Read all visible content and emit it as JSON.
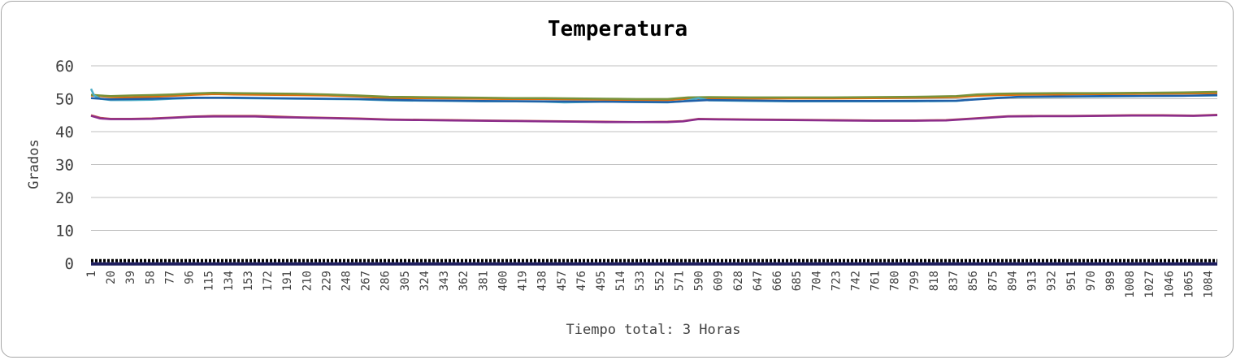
{
  "chart_data": {
    "type": "line",
    "title": "Temperatura",
    "xlabel": "Tiempo total: 3 Horas",
    "ylabel": "Grados",
    "ylim": [
      0,
      60
    ],
    "yticks": [
      0,
      10,
      20,
      30,
      40,
      50,
      60
    ],
    "xlim": [
      1,
      1093
    ],
    "xticks": [
      1,
      20,
      39,
      58,
      77,
      96,
      115,
      134,
      153,
      172,
      191,
      210,
      229,
      248,
      267,
      286,
      305,
      324,
      343,
      362,
      381,
      400,
      419,
      438,
      457,
      476,
      495,
      514,
      533,
      552,
      571,
      590,
      609,
      628,
      647,
      666,
      685,
      704,
      723,
      742,
      761,
      780,
      799,
      818,
      837,
      856,
      875,
      894,
      913,
      932,
      951,
      970,
      989,
      1008,
      1027,
      1046,
      1065,
      1084
    ],
    "grid": true,
    "legend": "none",
    "series": [
      {
        "color": "#e36c0a",
        "x": [
          1,
          10,
          20,
          40,
          60,
          80,
          100,
          120,
          140,
          170,
          200,
          230,
          260,
          290,
          320,
          350,
          380,
          410,
          440,
          470,
          500,
          530,
          560,
          580,
          600,
          640,
          680,
          720,
          760,
          800,
          840,
          860,
          880,
          900,
          940,
          980,
          1020,
          1060,
          1093
        ],
        "y": [
          51,
          50.8,
          50.5,
          50.4,
          50.6,
          50.9,
          51.2,
          51.4,
          51.3,
          51.2,
          51.1,
          51.0,
          50.7,
          50.2,
          50.2,
          50.1,
          50.0,
          49.9,
          49.9,
          49.8,
          49.7,
          49.6,
          49.6,
          50.0,
          50.1,
          50.1,
          50.1,
          50.1,
          50.2,
          50.3,
          50.5,
          50.9,
          51.1,
          51.2,
          51.3,
          51.4,
          51.5,
          51.6,
          51.7
        ]
      },
      {
        "color": "#77933c",
        "x": [
          1,
          10,
          20,
          40,
          60,
          80,
          100,
          120,
          140,
          170,
          200,
          230,
          260,
          290,
          320,
          350,
          380,
          410,
          440,
          470,
          500,
          530,
          560,
          580,
          600,
          640,
          680,
          720,
          760,
          800,
          840,
          860,
          880,
          900,
          940,
          980,
          1020,
          1060,
          1093
        ],
        "y": [
          51.2,
          51.0,
          50.8,
          51.0,
          51.1,
          51.3,
          51.6,
          51.8,
          51.7,
          51.6,
          51.5,
          51.3,
          51.0,
          50.6,
          50.5,
          50.4,
          50.3,
          50.2,
          50.2,
          50.1,
          50.0,
          49.9,
          49.9,
          50.4,
          50.5,
          50.4,
          50.4,
          50.4,
          50.5,
          50.6,
          50.8,
          51.3,
          51.5,
          51.6,
          51.7,
          51.7,
          51.8,
          51.9,
          52.1
        ]
      },
      {
        "color": "#4bacc6",
        "x": [
          1,
          4,
          10,
          20,
          40,
          60,
          80,
          100,
          120,
          140,
          170,
          200,
          230,
          260,
          290,
          320,
          350,
          380,
          410,
          440,
          460,
          500,
          530,
          560,
          575,
          590,
          600,
          640,
          680,
          720,
          760,
          800,
          840,
          860,
          880,
          900,
          940,
          980,
          1020,
          1060,
          1093
        ],
        "y": [
          53,
          51,
          50.0,
          49.6,
          49.6,
          49.7,
          50.0,
          50.2,
          50.3,
          50.2,
          50.1,
          50.0,
          49.9,
          49.8,
          49.5,
          49.4,
          49.3,
          49.2,
          49.2,
          49.1,
          48.9,
          49.1,
          49.0,
          48.9,
          49.2,
          50.2,
          49.5,
          49.3,
          49.2,
          49.2,
          49.2,
          49.2,
          49.3,
          49.9,
          50.3,
          50.5,
          50.6,
          50.7,
          50.8,
          50.9,
          51.0
        ]
      },
      {
        "color": "#1f5fa8",
        "x": [
          1,
          20,
          60,
          100,
          140,
          200,
          260,
          320,
          380,
          440,
          500,
          560,
          600,
          680,
          760,
          840,
          900,
          980,
          1060,
          1093
        ],
        "y": [
          50.2,
          49.8,
          50.0,
          50.3,
          50.3,
          50.1,
          49.9,
          49.5,
          49.3,
          49.2,
          49.1,
          49.0,
          49.6,
          49.3,
          49.3,
          49.4,
          50.6,
          50.8,
          50.9,
          51.1
        ]
      },
      {
        "color": "#c0504d",
        "x": [
          1,
          10,
          20,
          40,
          60,
          80,
          100,
          120,
          140,
          160,
          180,
          200,
          230,
          260,
          290,
          320,
          350,
          380,
          410,
          440,
          470,
          500,
          530,
          560,
          575,
          590,
          610,
          640,
          680,
          720,
          760,
          800,
          830,
          850,
          870,
          890,
          920,
          950,
          980,
          1010,
          1040,
          1070,
          1093
        ],
        "y": [
          45,
          44.2,
          43.9,
          43.9,
          44.0,
          44.3,
          44.6,
          44.8,
          44.8,
          44.8,
          44.6,
          44.4,
          44.2,
          44.0,
          43.7,
          43.6,
          43.5,
          43.4,
          43.3,
          43.2,
          43.1,
          43.0,
          42.9,
          43.0,
          43.2,
          43.9,
          43.8,
          43.7,
          43.6,
          43.5,
          43.4,
          43.4,
          43.5,
          43.9,
          44.3,
          44.7,
          44.8,
          44.8,
          44.9,
          45.0,
          45.0,
          44.9,
          45.1
        ]
      },
      {
        "color": "#8b2d8b",
        "x": [
          1,
          10,
          20,
          40,
          60,
          80,
          100,
          120,
          140,
          160,
          180,
          200,
          230,
          260,
          290,
          320,
          350,
          380,
          410,
          440,
          470,
          500,
          530,
          560,
          575,
          590,
          610,
          640,
          680,
          720,
          760,
          800,
          830,
          850,
          870,
          890,
          920,
          950,
          980,
          1010,
          1040,
          1070,
          1093
        ],
        "y": [
          44.8,
          44.0,
          43.8,
          43.8,
          43.9,
          44.2,
          44.5,
          44.6,
          44.6,
          44.6,
          44.4,
          44.3,
          44.1,
          43.9,
          43.6,
          43.5,
          43.4,
          43.3,
          43.2,
          43.1,
          43.0,
          42.9,
          42.9,
          42.9,
          43.1,
          43.8,
          43.7,
          43.6,
          43.5,
          43.4,
          43.3,
          43.3,
          43.4,
          43.8,
          44.2,
          44.6,
          44.7,
          44.7,
          44.8,
          44.9,
          44.9,
          44.8,
          45.0
        ]
      },
      {
        "color": "#000000",
        "x": [
          1,
          1093
        ],
        "y": [
          0.8,
          0.8
        ]
      },
      {
        "color": "#1f1f5f",
        "x": [
          1,
          1093
        ],
        "y": [
          -0.2,
          -0.2
        ]
      }
    ]
  }
}
